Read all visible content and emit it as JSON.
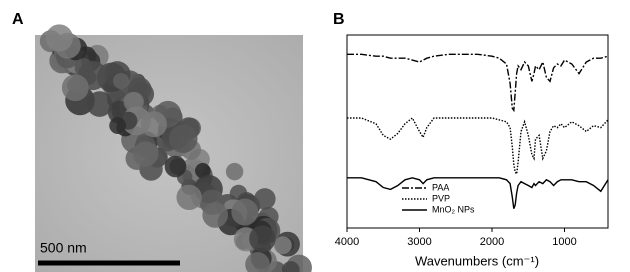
{
  "panel_labels": [
    "A",
    "B"
  ],
  "image": {
    "scale_bar": "500 nm"
  },
  "chart_data": {
    "type": "line",
    "xlabel": "Wavenumbers (cm⁻¹)",
    "x": [
      4000,
      3800,
      3600,
      3500,
      3400,
      3300,
      3200,
      3100,
      3000,
      2950,
      2900,
      2800,
      2600,
      2400,
      2200,
      2000,
      1900,
      1800,
      1750,
      1720,
      1700,
      1680,
      1660,
      1640,
      1600,
      1550,
      1500,
      1450,
      1420,
      1400,
      1350,
      1300,
      1250,
      1200,
      1150,
      1100,
      1050,
      1000,
      900,
      800,
      700,
      600,
      500,
      400
    ],
    "xlim": [
      4000,
      400
    ],
    "xticks": [
      4000,
      3000,
      2000,
      1000
    ],
    "ylim": [
      0,
      100
    ],
    "legend": "lower left",
    "series": [
      {
        "name": "PAA",
        "color": "#000000",
        "dash": "dashdot",
        "values": [
          90,
          90,
          89,
          89,
          88,
          88,
          88,
          87,
          86,
          87,
          88,
          89,
          90,
          90,
          90,
          89,
          88,
          85,
          75,
          62,
          61,
          70,
          80,
          84,
          82,
          86,
          84,
          76,
          80,
          84,
          82,
          86,
          78,
          76,
          83,
          85,
          84,
          87,
          85,
          80,
          86,
          88,
          88,
          89
        ]
      },
      {
        "name": "PVP",
        "color": "#000000",
        "dash": "dotted",
        "values": [
          57,
          57,
          54,
          48,
          46,
          49,
          54,
          57,
          50,
          47,
          52,
          57,
          57,
          57,
          57,
          57,
          56,
          55,
          52,
          42,
          33,
          29,
          28,
          34,
          50,
          55,
          48,
          38,
          36,
          46,
          48,
          36,
          40,
          50,
          53,
          52,
          54,
          52,
          55,
          53,
          50,
          53,
          52,
          56
        ]
      },
      {
        "name": "MnO₂ NPs",
        "color": "#000000",
        "dash": "solid",
        "values": [
          26,
          26,
          24,
          21,
          20,
          22,
          25,
          26,
          25,
          23,
          25,
          26,
          26,
          26,
          26,
          26,
          26,
          25,
          23,
          16,
          10,
          12,
          18,
          22,
          24,
          23,
          22,
          21,
          23,
          22,
          24,
          23,
          25,
          24,
          22,
          24,
          25,
          25,
          25,
          24,
          24,
          22,
          19,
          25
        ]
      }
    ]
  }
}
